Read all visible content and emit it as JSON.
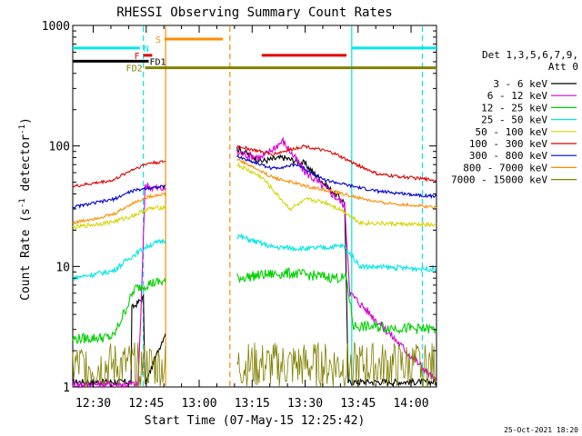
{
  "chart_data": {
    "type": "line",
    "title": "RHESSI Observing Summary Count Rates",
    "xlabel": "Start Time (07-May-15 12:25:42)",
    "ylabel": "Count Rate (s⁻¹ detector⁻¹)",
    "ylabel_main": "Count Rate (s",
    "ylabel_sup1": "-1",
    "ylabel_mid": " detector",
    "ylabel_sup2": "-1",
    "ylabel_end": ")",
    "yscale": "log",
    "ylim": [
      1,
      1000
    ],
    "xlim_minutes": [
      -1.5,
      101.5
    ],
    "x_ticks": [
      {
        "m": 4.3,
        "label": "12:30"
      },
      {
        "m": 19.3,
        "label": "12:45"
      },
      {
        "m": 34.3,
        "label": "13:00"
      },
      {
        "m": 49.3,
        "label": "13:15"
      },
      {
        "m": 64.3,
        "label": "13:30"
      },
      {
        "m": 79.3,
        "label": "13:45"
      },
      {
        "m": 94.3,
        "label": "14:00"
      }
    ],
    "y_ticks": [
      {
        "v": 1,
        "label": "1"
      },
      {
        "v": 10,
        "label": "10"
      },
      {
        "v": 100,
        "label": "100"
      },
      {
        "v": 1000,
        "label": "1000"
      }
    ],
    "legend_title": [
      "Det 1,3,5,6,7,9,",
      "Att 0"
    ],
    "series": [
      {
        "name": "3 - 6 keV",
        "color": "#000000"
      },
      {
        "name": "6 - 12 keV",
        "color": "#d400d4"
      },
      {
        "name": "12 - 25 keV",
        "color": "#00d000"
      },
      {
        "name": "25 - 50 keV",
        "color": "#00e6e6"
      },
      {
        "name": "50 - 100 keV",
        "color": "#d4d400"
      },
      {
        "name": "100 - 300 keV",
        "color": "#e00000"
      },
      {
        "name": "300 - 800 keV",
        "color": "#0000d0"
      },
      {
        "name": "800 - 7000 keV",
        "color": "#ff8c00"
      },
      {
        "name": "7000 - 15000 keV",
        "color": "#808000"
      }
    ],
    "flags": [
      {
        "label": "N",
        "color": "#00e6e6",
        "y": 650,
        "segments": [
          [
            -1.5,
            17.5
          ],
          [
            77.5,
            101.5
          ]
        ]
      },
      {
        "label": "S",
        "color": "#ff8c00",
        "y": 770,
        "segments": [
          [
            24.5,
            41
          ]
        ]
      },
      {
        "label": "F",
        "color": "#e00000",
        "y": 565,
        "segments": [
          [
            18.5,
            21
          ],
          [
            52,
            76
          ]
        ]
      },
      {
        "label": "FD1",
        "color": "#000000",
        "y": 505,
        "segments": [
          [
            -1.5,
            20
          ]
        ]
      },
      {
        "label": "FD2",
        "color": "#808000",
        "y": 445,
        "segments": [
          [
            19,
            101.5
          ]
        ]
      }
    ],
    "vlines": [
      {
        "m": 18.5,
        "color": "#00e6e6",
        "dashed": true
      },
      {
        "m": 24.8,
        "color": "#ff8c00",
        "dashed": false
      },
      {
        "m": 43.0,
        "color": "#ff8c00",
        "dashed": true
      },
      {
        "m": 77.5,
        "color": "#00e6e6",
        "dashed": false
      },
      {
        "m": 97.5,
        "color": "#00e6e6",
        "dashed": true
      }
    ],
    "data_intervals": [
      [
        -1.5,
        24.8
      ],
      [
        45,
        101.5
      ]
    ],
    "stamp": "25-Oct-2021 18:20"
  }
}
